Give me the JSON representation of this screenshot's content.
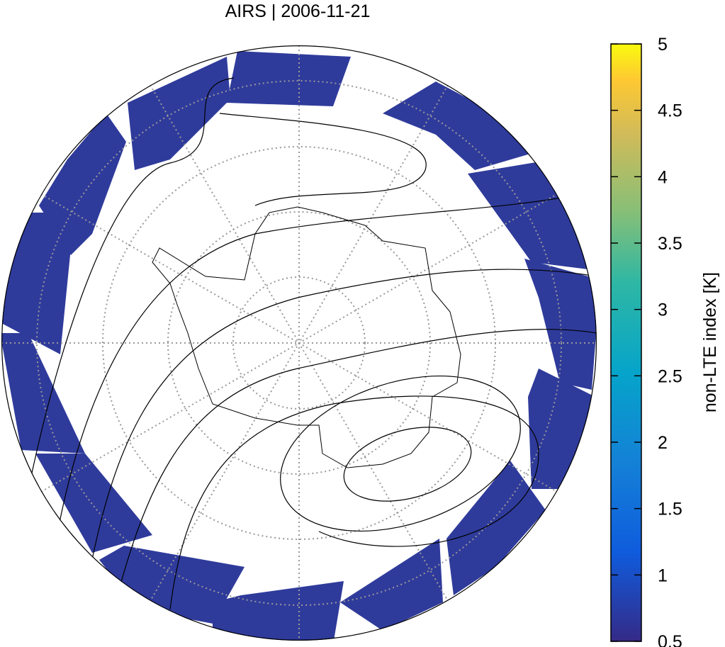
{
  "title": "AIRS | 2006-11-21",
  "colorbar": {
    "label": "non-LTE index [K]",
    "lim": [
      0.5,
      5
    ],
    "ticks": [
      0.5,
      1,
      1.5,
      2,
      2.5,
      3,
      3.5,
      4,
      4.5,
      5
    ]
  }
}
